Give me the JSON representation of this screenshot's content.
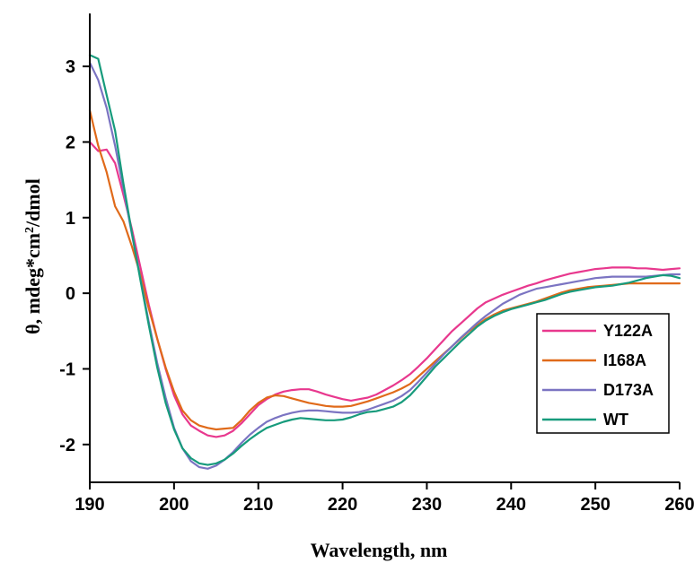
{
  "chart_data": {
    "type": "line",
    "title": "",
    "xlabel": "Wavelength, nm",
    "ylabel_parts": {
      "pre": "θ, mdeg*cm",
      "sup": "2",
      "post": "/dmol"
    },
    "xlim": [
      190,
      260
    ],
    "ylim": [
      -2.5,
      3.7
    ],
    "x_ticks": [
      190,
      200,
      210,
      220,
      230,
      240,
      250,
      260
    ],
    "y_ticks": [
      -2,
      -1,
      0,
      1,
      2,
      3
    ],
    "legend_position": "right",
    "grid": false,
    "series": [
      {
        "name": "Y122A",
        "color": "#e8388e",
        "points": [
          [
            190,
            2.0
          ],
          [
            191,
            1.88
          ],
          [
            192,
            1.9
          ],
          [
            193,
            1.72
          ],
          [
            194,
            1.3
          ],
          [
            195,
            0.85
          ],
          [
            196,
            0.35
          ],
          [
            197,
            -0.15
          ],
          [
            198,
            -0.6
          ],
          [
            199,
            -1.0
          ],
          [
            200,
            -1.35
          ],
          [
            201,
            -1.6
          ],
          [
            202,
            -1.75
          ],
          [
            203,
            -1.82
          ],
          [
            204,
            -1.88
          ],
          [
            205,
            -1.9
          ],
          [
            206,
            -1.88
          ],
          [
            207,
            -1.82
          ],
          [
            208,
            -1.72
          ],
          [
            209,
            -1.6
          ],
          [
            210,
            -1.48
          ],
          [
            211,
            -1.4
          ],
          [
            212,
            -1.34
          ],
          [
            213,
            -1.3
          ],
          [
            214,
            -1.28
          ],
          [
            215,
            -1.27
          ],
          [
            216,
            -1.27
          ],
          [
            217,
            -1.3
          ],
          [
            218,
            -1.34
          ],
          [
            219,
            -1.37
          ],
          [
            220,
            -1.4
          ],
          [
            221,
            -1.42
          ],
          [
            222,
            -1.4
          ],
          [
            223,
            -1.38
          ],
          [
            224,
            -1.34
          ],
          [
            225,
            -1.28
          ],
          [
            226,
            -1.22
          ],
          [
            227,
            -1.15
          ],
          [
            228,
            -1.07
          ],
          [
            229,
            -0.97
          ],
          [
            230,
            -0.86
          ],
          [
            231,
            -0.74
          ],
          [
            232,
            -0.62
          ],
          [
            233,
            -0.5
          ],
          [
            234,
            -0.4
          ],
          [
            235,
            -0.3
          ],
          [
            236,
            -0.2
          ],
          [
            237,
            -0.12
          ],
          [
            238,
            -0.07
          ],
          [
            239,
            -0.02
          ],
          [
            240,
            0.02
          ],
          [
            241,
            0.06
          ],
          [
            242,
            0.1
          ],
          [
            243,
            0.13
          ],
          [
            244,
            0.17
          ],
          [
            245,
            0.2
          ],
          [
            246,
            0.23
          ],
          [
            247,
            0.26
          ],
          [
            248,
            0.28
          ],
          [
            249,
            0.3
          ],
          [
            250,
            0.32
          ],
          [
            251,
            0.33
          ],
          [
            252,
            0.34
          ],
          [
            253,
            0.34
          ],
          [
            254,
            0.34
          ],
          [
            255,
            0.33
          ],
          [
            256,
            0.33
          ],
          [
            257,
            0.32
          ],
          [
            258,
            0.31
          ],
          [
            259,
            0.32
          ],
          [
            260,
            0.33
          ]
        ]
      },
      {
        "name": "I168A",
        "color": "#e06a1a",
        "points": [
          [
            190,
            2.42
          ],
          [
            191,
            1.95
          ],
          [
            192,
            1.6
          ],
          [
            193,
            1.15
          ],
          [
            194,
            0.95
          ],
          [
            195,
            0.62
          ],
          [
            196,
            0.25
          ],
          [
            197,
            -0.2
          ],
          [
            198,
            -0.6
          ],
          [
            199,
            -0.98
          ],
          [
            200,
            -1.3
          ],
          [
            201,
            -1.55
          ],
          [
            202,
            -1.68
          ],
          [
            203,
            -1.75
          ],
          [
            204,
            -1.78
          ],
          [
            205,
            -1.8
          ],
          [
            206,
            -1.79
          ],
          [
            207,
            -1.78
          ],
          [
            208,
            -1.68
          ],
          [
            209,
            -1.55
          ],
          [
            210,
            -1.45
          ],
          [
            211,
            -1.38
          ],
          [
            212,
            -1.35
          ],
          [
            213,
            -1.36
          ],
          [
            214,
            -1.39
          ],
          [
            215,
            -1.42
          ],
          [
            216,
            -1.45
          ],
          [
            217,
            -1.47
          ],
          [
            218,
            -1.49
          ],
          [
            219,
            -1.5
          ],
          [
            220,
            -1.5
          ],
          [
            221,
            -1.49
          ],
          [
            222,
            -1.46
          ],
          [
            223,
            -1.43
          ],
          [
            224,
            -1.39
          ],
          [
            225,
            -1.35
          ],
          [
            226,
            -1.31
          ],
          [
            227,
            -1.26
          ],
          [
            228,
            -1.2
          ],
          [
            229,
            -1.1
          ],
          [
            230,
            -1.0
          ],
          [
            231,
            -0.9
          ],
          [
            232,
            -0.8
          ],
          [
            233,
            -0.7
          ],
          [
            234,
            -0.6
          ],
          [
            235,
            -0.5
          ],
          [
            236,
            -0.42
          ],
          [
            237,
            -0.34
          ],
          [
            238,
            -0.28
          ],
          [
            239,
            -0.23
          ],
          [
            240,
            -0.2
          ],
          [
            241,
            -0.17
          ],
          [
            242,
            -0.14
          ],
          [
            243,
            -0.11
          ],
          [
            244,
            -0.07
          ],
          [
            245,
            -0.03
          ],
          [
            246,
            0.01
          ],
          [
            247,
            0.04
          ],
          [
            248,
            0.06
          ],
          [
            249,
            0.08
          ],
          [
            250,
            0.09
          ],
          [
            251,
            0.1
          ],
          [
            252,
            0.11
          ],
          [
            253,
            0.12
          ],
          [
            254,
            0.13
          ],
          [
            255,
            0.13
          ],
          [
            256,
            0.13
          ],
          [
            257,
            0.13
          ],
          [
            258,
            0.13
          ],
          [
            259,
            0.13
          ],
          [
            260,
            0.13
          ]
        ]
      },
      {
        "name": "D173A",
        "color": "#7b74c2",
        "points": [
          [
            190,
            3.05
          ],
          [
            191,
            2.82
          ],
          [
            192,
            2.45
          ],
          [
            193,
            1.95
          ],
          [
            194,
            1.38
          ],
          [
            195,
            0.78
          ],
          [
            196,
            0.2
          ],
          [
            197,
            -0.38
          ],
          [
            198,
            -0.92
          ],
          [
            199,
            -1.38
          ],
          [
            200,
            -1.78
          ],
          [
            201,
            -2.05
          ],
          [
            202,
            -2.22
          ],
          [
            203,
            -2.3
          ],
          [
            204,
            -2.32
          ],
          [
            205,
            -2.28
          ],
          [
            206,
            -2.2
          ],
          [
            207,
            -2.1
          ],
          [
            208,
            -1.98
          ],
          [
            209,
            -1.87
          ],
          [
            210,
            -1.78
          ],
          [
            211,
            -1.7
          ],
          [
            212,
            -1.65
          ],
          [
            213,
            -1.61
          ],
          [
            214,
            -1.58
          ],
          [
            215,
            -1.56
          ],
          [
            216,
            -1.55
          ],
          [
            217,
            -1.55
          ],
          [
            218,
            -1.56
          ],
          [
            219,
            -1.57
          ],
          [
            220,
            -1.58
          ],
          [
            221,
            -1.58
          ],
          [
            222,
            -1.57
          ],
          [
            223,
            -1.54
          ],
          [
            224,
            -1.5
          ],
          [
            225,
            -1.46
          ],
          [
            226,
            -1.42
          ],
          [
            227,
            -1.36
          ],
          [
            228,
            -1.28
          ],
          [
            229,
            -1.17
          ],
          [
            230,
            -1.05
          ],
          [
            231,
            -0.93
          ],
          [
            232,
            -0.81
          ],
          [
            233,
            -0.7
          ],
          [
            234,
            -0.59
          ],
          [
            235,
            -0.49
          ],
          [
            236,
            -0.39
          ],
          [
            237,
            -0.3
          ],
          [
            238,
            -0.22
          ],
          [
            239,
            -0.14
          ],
          [
            240,
            -0.08
          ],
          [
            241,
            -0.02
          ],
          [
            242,
            0.02
          ],
          [
            243,
            0.06
          ],
          [
            244,
            0.08
          ],
          [
            245,
            0.1
          ],
          [
            246,
            0.12
          ],
          [
            247,
            0.14
          ],
          [
            248,
            0.16
          ],
          [
            249,
            0.18
          ],
          [
            250,
            0.2
          ],
          [
            251,
            0.21
          ],
          [
            252,
            0.22
          ],
          [
            253,
            0.22
          ],
          [
            254,
            0.22
          ],
          [
            255,
            0.22
          ],
          [
            256,
            0.22
          ],
          [
            257,
            0.23
          ],
          [
            258,
            0.24
          ],
          [
            259,
            0.25
          ],
          [
            260,
            0.25
          ]
        ]
      },
      {
        "name": "WT",
        "color": "#179b7c",
        "points": [
          [
            190,
            3.15
          ],
          [
            191,
            3.1
          ],
          [
            192,
            2.62
          ],
          [
            193,
            2.15
          ],
          [
            194,
            1.45
          ],
          [
            195,
            0.8
          ],
          [
            196,
            0.18
          ],
          [
            197,
            -0.42
          ],
          [
            198,
            -0.98
          ],
          [
            199,
            -1.45
          ],
          [
            200,
            -1.8
          ],
          [
            201,
            -2.05
          ],
          [
            202,
            -2.18
          ],
          [
            203,
            -2.25
          ],
          [
            204,
            -2.27
          ],
          [
            205,
            -2.25
          ],
          [
            206,
            -2.2
          ],
          [
            207,
            -2.12
          ],
          [
            208,
            -2.02
          ],
          [
            209,
            -1.93
          ],
          [
            210,
            -1.85
          ],
          [
            211,
            -1.78
          ],
          [
            212,
            -1.74
          ],
          [
            213,
            -1.7
          ],
          [
            214,
            -1.67
          ],
          [
            215,
            -1.65
          ],
          [
            216,
            -1.66
          ],
          [
            217,
            -1.67
          ],
          [
            218,
            -1.68
          ],
          [
            219,
            -1.68
          ],
          [
            220,
            -1.67
          ],
          [
            221,
            -1.64
          ],
          [
            222,
            -1.6
          ],
          [
            223,
            -1.57
          ],
          [
            224,
            -1.56
          ],
          [
            225,
            -1.53
          ],
          [
            226,
            -1.5
          ],
          [
            227,
            -1.44
          ],
          [
            228,
            -1.35
          ],
          [
            229,
            -1.23
          ],
          [
            230,
            -1.1
          ],
          [
            231,
            -0.97
          ],
          [
            232,
            -0.86
          ],
          [
            233,
            -0.75
          ],
          [
            234,
            -0.64
          ],
          [
            235,
            -0.54
          ],
          [
            236,
            -0.44
          ],
          [
            237,
            -0.36
          ],
          [
            238,
            -0.3
          ],
          [
            239,
            -0.25
          ],
          [
            240,
            -0.21
          ],
          [
            241,
            -0.18
          ],
          [
            242,
            -0.15
          ],
          [
            243,
            -0.12
          ],
          [
            244,
            -0.09
          ],
          [
            245,
            -0.05
          ],
          [
            246,
            -0.01
          ],
          [
            247,
            0.02
          ],
          [
            248,
            0.04
          ],
          [
            249,
            0.06
          ],
          [
            250,
            0.08
          ],
          [
            251,
            0.09
          ],
          [
            252,
            0.1
          ],
          [
            253,
            0.12
          ],
          [
            254,
            0.14
          ],
          [
            255,
            0.17
          ],
          [
            256,
            0.2
          ],
          [
            257,
            0.22
          ],
          [
            258,
            0.24
          ],
          [
            259,
            0.23
          ],
          [
            260,
            0.2
          ]
        ]
      }
    ]
  }
}
